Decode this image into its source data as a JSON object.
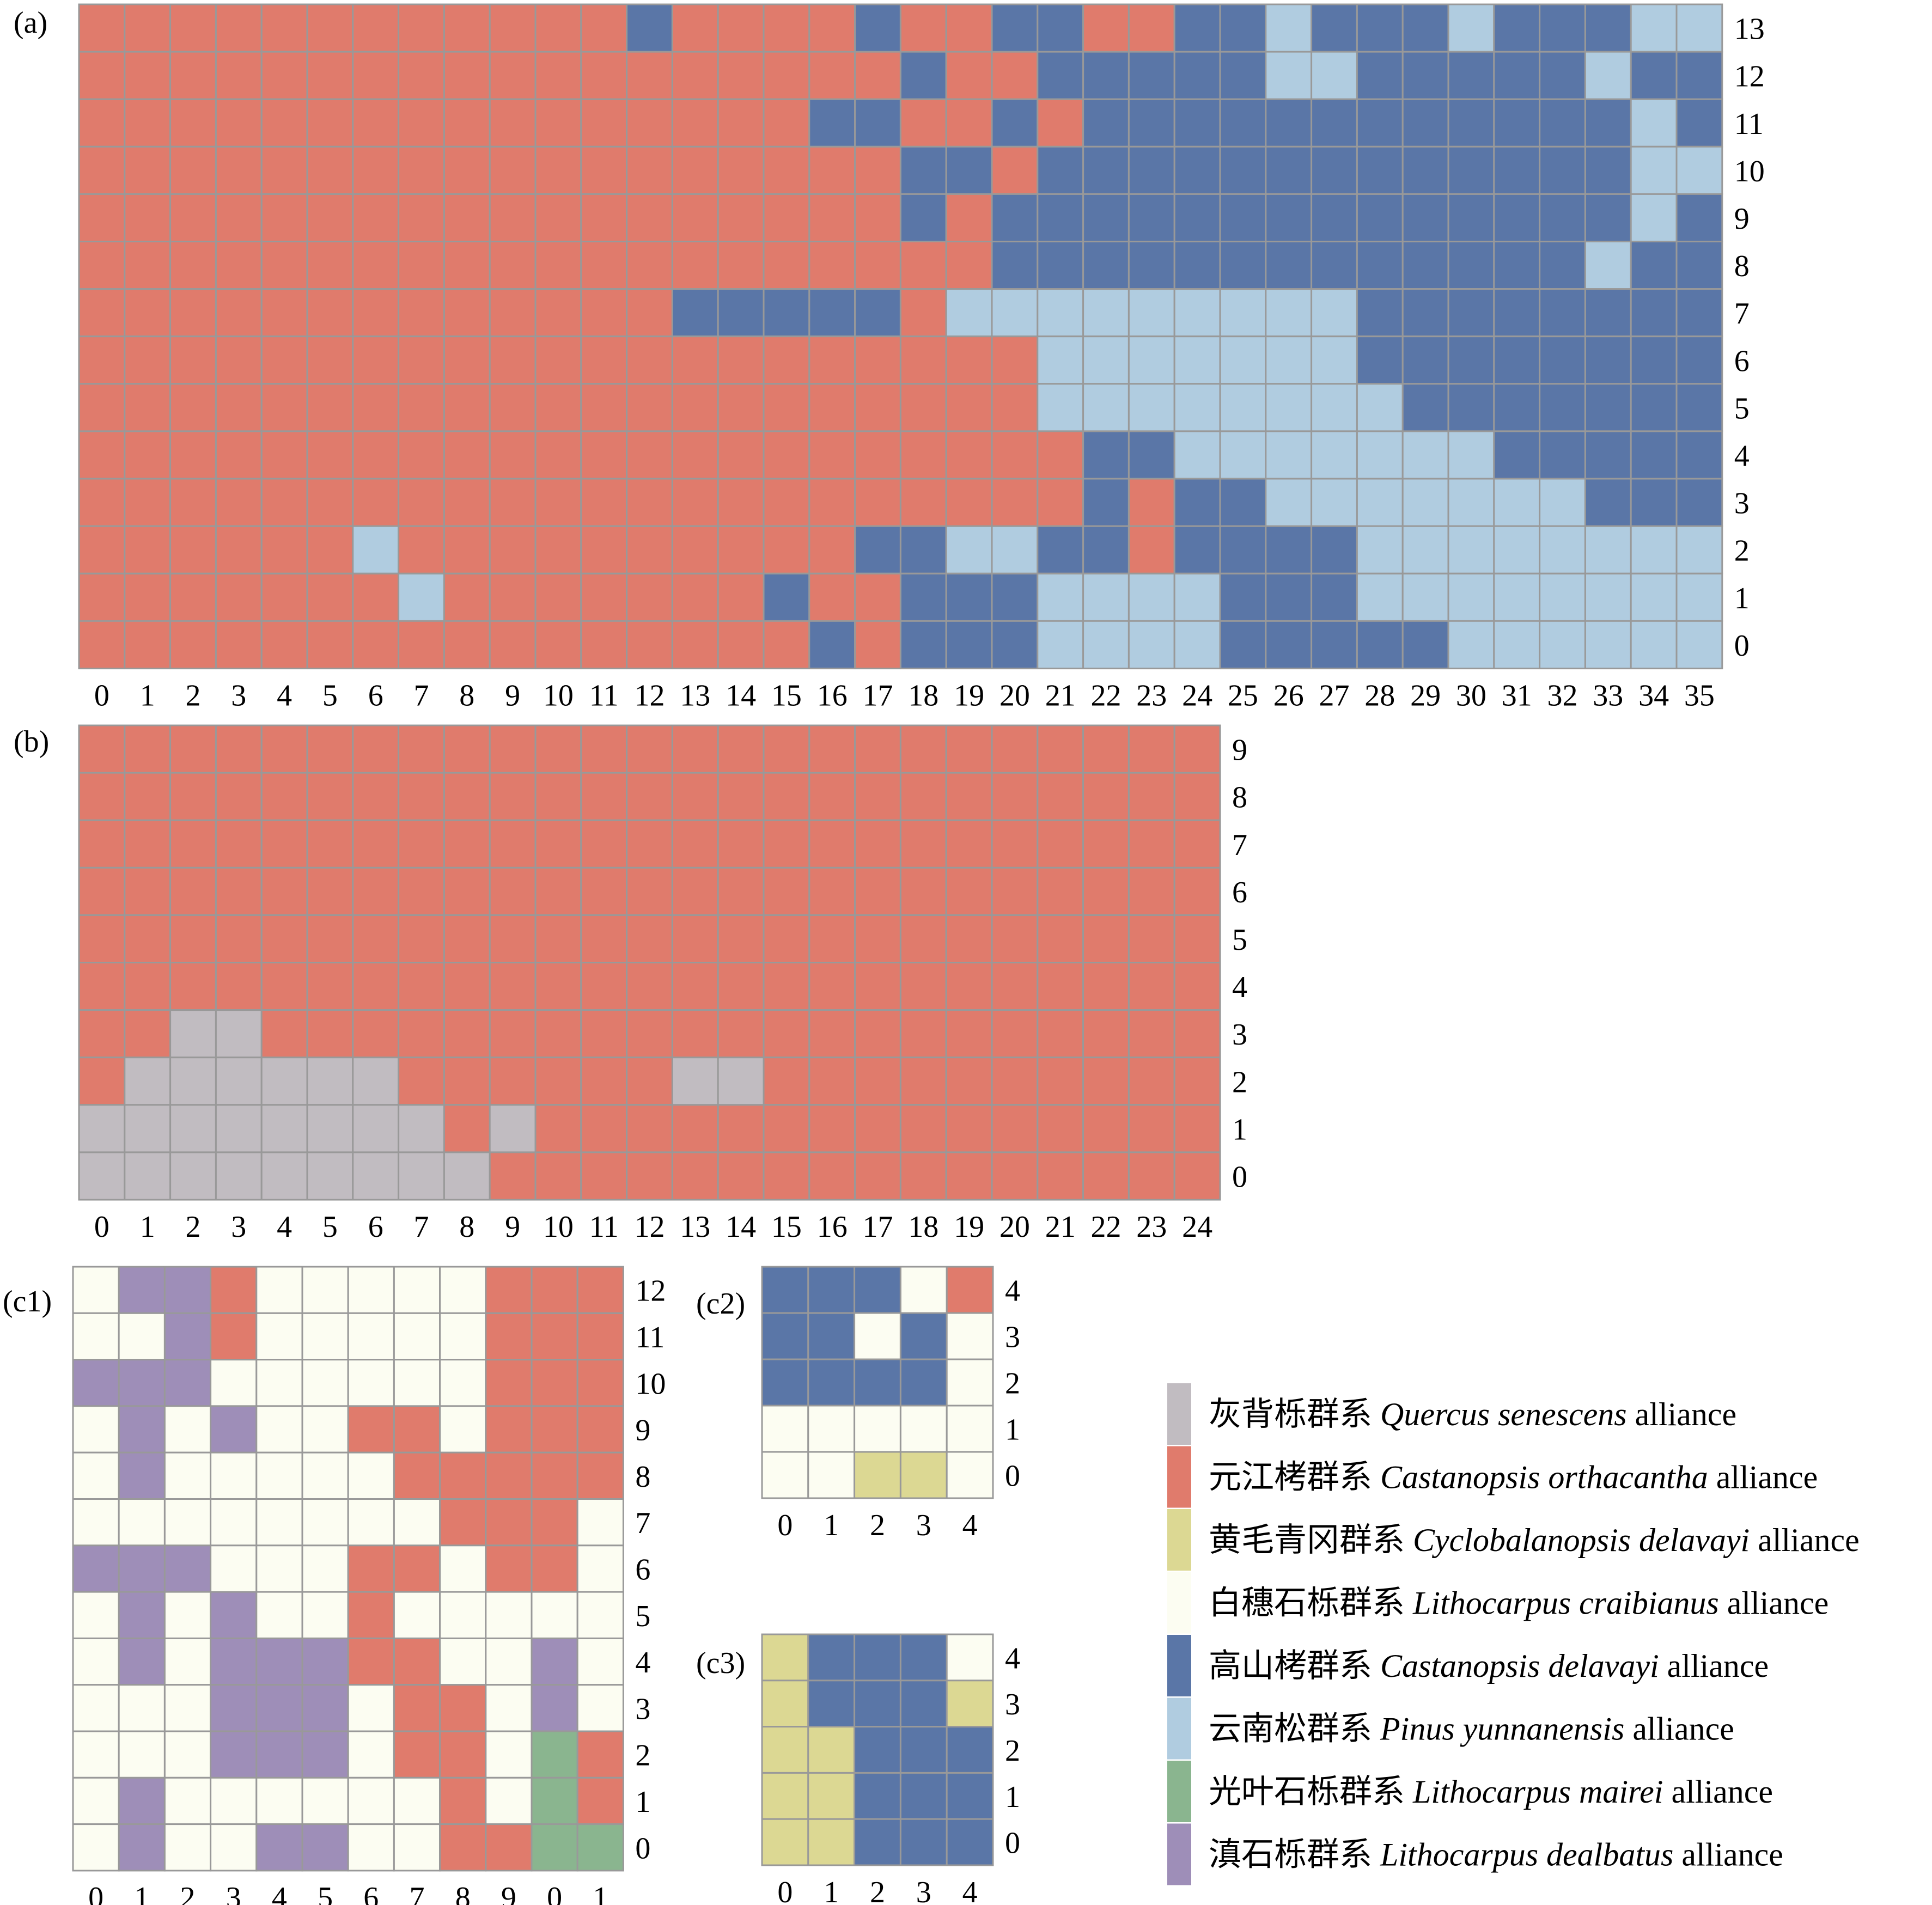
{
  "colors": {
    "G": "#c1bcc1",
    "R": "#e07b6c",
    "Y": "#dcd893",
    "W": "#fcfdf2",
    "D": "#5a76a7",
    "L": "#b0cce0",
    "N": "#8ab58f",
    "P": "#9e8eb8",
    "grid": "#999999"
  },
  "legend": [
    {
      "key": "G",
      "cn": "灰背栎群系",
      "latin": "Quercus senescens",
      "suffix": "alliance"
    },
    {
      "key": "R",
      "cn": "元江栲群系",
      "latin": "Castanopsis orthacantha",
      "suffix": "alliance"
    },
    {
      "key": "Y",
      "cn": "黄毛青冈群系",
      "latin": "Cyclobalanopsis delavayi",
      "suffix": "alliance"
    },
    {
      "key": "W",
      "cn": "白穗石栎群系",
      "latin": "Lithocarpus craibianus",
      "suffix": "alliance"
    },
    {
      "key": "D",
      "cn": "高山栲群系",
      "latin": "Castanopsis delavayi",
      "suffix": "alliance"
    },
    {
      "key": "L",
      "cn": "云南松群系",
      "latin": "Pinus yunnanensis",
      "suffix": "alliance"
    },
    {
      "key": "N",
      "cn": "光叶石栎群系",
      "latin": "Lithocarpus mairei",
      "suffix": "alliance"
    },
    {
      "key": "P",
      "cn": "滇石栎群系",
      "latin": "Lithocarpus dealbatus",
      "suffix": "alliance"
    }
  ],
  "chart_data": [
    {
      "type": "heatmap",
      "label": "(a)",
      "x_labels": [
        "0",
        "1",
        "2",
        "3",
        "4",
        "5",
        "6",
        "7",
        "8",
        "9",
        "10",
        "11",
        "12",
        "13",
        "14",
        "15",
        "16",
        "17",
        "18",
        "19",
        "20",
        "21",
        "22",
        "23",
        "24",
        "25",
        "26",
        "27",
        "28",
        "29",
        "30",
        "31",
        "32",
        "33",
        "34",
        "35"
      ],
      "y_labels": [
        "13",
        "12",
        "11",
        "10",
        "9",
        "8",
        "7",
        "6",
        "5",
        "4",
        "3",
        "2",
        "1",
        "0"
      ],
      "rows": [
        "RRRRRRRRRRRRDRRRRDRRDDRRDDLDDDLDDDLL",
        "RRRRRRRRRRRRRRRRRRDRRDDDDDLLDDDDDLDD",
        "RRRRRRRRRRRRRRRRDDRRDRDDDDDDDDDDDDLD",
        "RRRRRRRRRRRRRRRRRRDDRDDDDDDDDDDDDDLL",
        "RRRRRRRRRRRRRRRRRRDRDDDDDDDDDDDDDDLD",
        "RRRRRRRRRRRRRRRRRRRRDDDDDDDDDDDDDLDD",
        "RRRRRRRRRRRRRDDDDDRLLLLLLLLLDDDDDDDD",
        "RRRRRRRRRRRRRRRRRRRRRLLLLLLLDDDDDDDD",
        "RRRRRRRRRRRRRRRRRRRRRLLLLLLLLDDDDDDD",
        "RRRRRRRRRRRRRRRRRRRRRRDDLLLLLLLDDDDD",
        "RRRRRRRRRRRRRRRRRRRRRRDRDDLLLLLLLDDD",
        "RRRRRRLRRRRRRRRRRDDLLDDRDDDDLLLLLLLL",
        "RRRRRRRLRRRRRRRDRRDDDLLLLDDDLLLLLLLL",
        "RRRRRRRRRRRRRRRRDRDDDLLLLDDDDDLLLLLL"
      ]
    },
    {
      "type": "heatmap",
      "label": "(b)",
      "x_labels": [
        "0",
        "1",
        "2",
        "3",
        "4",
        "5",
        "6",
        "7",
        "8",
        "9",
        "10",
        "11",
        "12",
        "13",
        "14",
        "15",
        "16",
        "17",
        "18",
        "19",
        "20",
        "21",
        "22",
        "23",
        "24"
      ],
      "y_labels": [
        "9",
        "8",
        "7",
        "6",
        "5",
        "4",
        "3",
        "2",
        "1",
        "0"
      ],
      "rows": [
        "RRRRRRRRRRRRRRRRRRRRRRRRR",
        "RRRRRRRRRRRRRRRRRRRRRRRRR",
        "RRRRRRRRRRRRRRRRRRRRRRRRR",
        "RRRRRRRRRRRRRRRRRRRRRRRRR",
        "RRRRRRRRRRRRRRRRRRRRRRRRR",
        "RRRRRRRRRRRRRRRRRRRRRRRRR",
        "RRGGRRRRRRRRRRRRRRRRRRRRR",
        "RGGGGGGRRRRRRGGRRRRRRRRRR",
        "GGGGGGGGRGRRRRRRRRRRRRRRR",
        "GGGGGGGGGRRRRRRRRRRRRRRRR"
      ]
    },
    {
      "type": "heatmap",
      "label": "(c1)",
      "x_labels": [
        "0",
        "1",
        "2",
        "3",
        "4",
        "5",
        "6",
        "7",
        "8",
        "9",
        "0",
        "1"
      ],
      "y_labels": [
        "12",
        "11",
        "10",
        "9",
        "8",
        "7",
        "6",
        "5",
        "4",
        "3",
        "2",
        "1",
        "0"
      ],
      "rows": [
        "WPPRWWWWWRRR",
        "WWPRWWWWWRRR",
        "PPPWWWWWWRRR",
        "WPWPWWRRWRRR",
        "WPWWWWWRRRRR",
        "WWWWWWWWRRRW",
        "PPPWWWRRWRRW",
        "WPWPWWRWWWWW",
        "WPWPPPRRWWPW",
        "WWWPPPWRRWPW",
        "WWWPPPWRRWNR",
        "WPWWWWWWRWNR",
        "WPWWPPWWRRNN"
      ]
    },
    {
      "type": "heatmap",
      "label": "(c2)",
      "x_labels": [
        "0",
        "1",
        "2",
        "3",
        "4"
      ],
      "y_labels": [
        "4",
        "3",
        "2",
        "1",
        "0"
      ],
      "rows": [
        "DDDWR",
        "DDWDW",
        "DDDDW",
        "WWWWW",
        "WWYYW"
      ]
    },
    {
      "type": "heatmap",
      "label": "(c3)",
      "x_labels": [
        "0",
        "1",
        "2",
        "3",
        "4"
      ],
      "y_labels": [
        "4",
        "3",
        "2",
        "1",
        "0"
      ],
      "rows": [
        "YDDDW",
        "YDDDY",
        "YYDDD",
        "YYDDD",
        "YYDDD"
      ]
    }
  ]
}
